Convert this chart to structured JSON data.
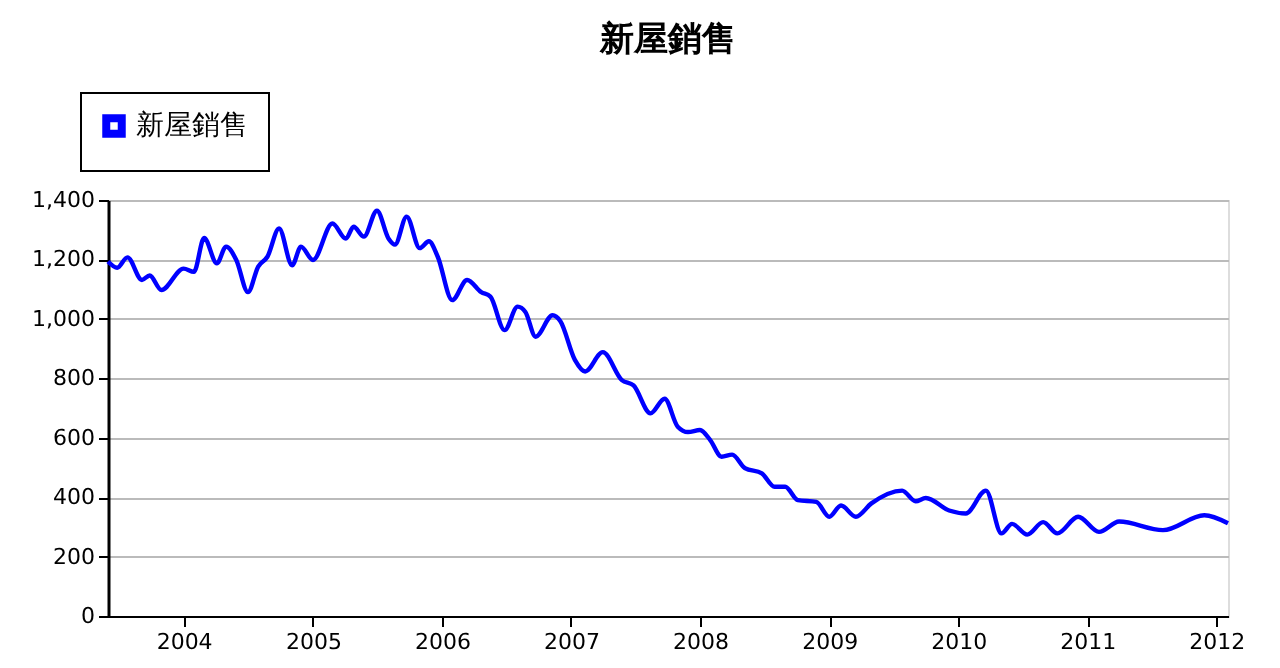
{
  "chart_data": {
    "type": "line",
    "title": "新屋銷售",
    "x": [
      "2003-06-01",
      "2003-06-27",
      "2003-07-26",
      "2003-09-05",
      "2003-09-27",
      "2003-10-30",
      "2004-01-01",
      "2004-01-30",
      "2004-02-28",
      "2004-04-04",
      "2004-04-30",
      "2004-05-29",
      "2004-07-01",
      "2004-07-30",
      "2004-08-25",
      "2004-09-27",
      "2004-11-03",
      "2004-11-28",
      "2005-01-01",
      "2005-02-25",
      "2005-04-04",
      "2005-04-26",
      "2005-05-25",
      "2005-07-01",
      "2005-08-03",
      "2005-08-21",
      "2005-09-23",
      "2005-10-30",
      "2005-11-25",
      "2005-12-20",
      "2006-01-30",
      "2006-03-13",
      "2006-04-22",
      "2006-05-18",
      "2006-06-27",
      "2006-08-03",
      "2006-08-25",
      "2006-09-23",
      "2006-11-10",
      "2006-12-02",
      "2007-01-12",
      "2007-02-10",
      "2007-04-01",
      "2007-05-25",
      "2007-06-27",
      "2007-08-14",
      "2007-09-23",
      "2007-10-30",
      "2007-11-28",
      "2008-01-01",
      "2008-01-30",
      "2008-03-02",
      "2008-04-01",
      "2008-05-07",
      "2008-06-24",
      "2008-07-30",
      "2008-08-29",
      "2008-10-04",
      "2008-11-25",
      "2009-01-01",
      "2009-02-03",
      "2009-03-17",
      "2009-04-30",
      "2009-07-26",
      "2009-09-02",
      "2009-10-01",
      "2009-12-06",
      "2010-01-22",
      "2010-03-20",
      "2010-05-03",
      "2010-06-02",
      "2010-07-15",
      "2010-08-29",
      "2010-10-08",
      "2010-12-06",
      "2011-02-03",
      "2011-04-01",
      "2011-08-03",
      "2011-11-28",
      "2012-02-03"
    ],
    "series": [
      {
        "name": "新屋銷售",
        "color": "#0000ff",
        "values": [
          1193,
          1172,
          1207,
          1131,
          1146,
          1097,
          1169,
          1158,
          1272,
          1187,
          1243,
          1198,
          1090,
          1176,
          1209,
          1304,
          1180,
          1243,
          1198,
          1321,
          1270,
          1310,
          1277,
          1364,
          1270,
          1250,
          1344,
          1238,
          1261,
          1209,
          1063,
          1131,
          1090,
          1075,
          962,
          1041,
          1023,
          940,
          1012,
          992,
          862,
          823,
          888,
          794,
          776,
          682,
          731,
          637,
          619,
          626,
          592,
          536,
          543,
          498,
          480,
          435,
          435,
          390,
          384,
          334,
          372,
          334,
          379,
          422,
          386,
          397,
          355,
          345,
          422,
          278,
          310,
          274,
          316,
          278,
          334,
          283,
          318,
          289,
          339,
          312
        ]
      }
    ],
    "xlim": [
      "2003-06-01",
      "2012-02-03"
    ],
    "xticks": [
      "2004",
      "2005",
      "2006",
      "2007",
      "2008",
      "2009",
      "2010",
      "2011",
      "2012"
    ],
    "ylim": [
      0,
      1400
    ],
    "yticks": [
      0,
      200,
      400,
      600,
      800,
      {
        "value": 1000,
        "label": "1,000"
      },
      {
        "value": 1200,
        "label": "1,200"
      },
      {
        "value": 1400,
        "label": "1,400"
      }
    ],
    "grid": "y",
    "legend": "top left"
  }
}
